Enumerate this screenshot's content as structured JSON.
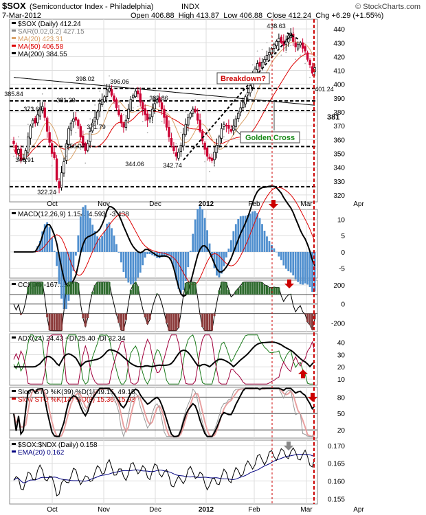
{
  "header": {
    "symbol": "$SOX",
    "name": "(Semiconductor Index - Philadelphia)",
    "exchange": "INDX",
    "credit": "© StockCharts.com",
    "date": "7-Mar-2012",
    "open_label": "Open",
    "open": "406.88",
    "high_label": "High",
    "high": "413.87",
    "low_label": "Low",
    "low": "406.88",
    "close_label": "Close",
    "close": "412.24",
    "chg_label": "Chg",
    "chg": "+6.29 (+1.55%)"
  },
  "colors": {
    "up": "#000000",
    "down": "#cc0033",
    "ma20": "#d9a066",
    "ma50": "#dd0000",
    "ma200": "#000000",
    "sar": "#aaaaaa",
    "annot": "#cc0000",
    "green": "#1a8a1a",
    "macd_hist": "#4f8fcf",
    "cci_fill": "#2e6b2e",
    "cci_neg": "#8b3a3a",
    "plusdi": "#1a7a1a",
    "minusdi": "#a0003c",
    "ema": "#000080",
    "grid": "#dddddd"
  },
  "chart_data": [
    {
      "type": "candlestick",
      "panel": "price",
      "legend": [
        {
          "label": "$SOX (Daily) 412.24",
          "color": "#000000"
        },
        {
          "label": "SAR(0.02,0.2) 427.15",
          "color": "#888888"
        },
        {
          "label": "MA(20) 423.31",
          "color": "#d9a066"
        },
        {
          "label": "MA(50) 406.58",
          "color": "#dd0000"
        },
        {
          "label": "MA(200) 384.55",
          "color": "#000000"
        }
      ],
      "x_labels": [
        "Oct",
        "Nov",
        "Dec",
        "2012",
        "Feb",
        "Mar",
        "Apr"
      ],
      "y_ticks": [
        320,
        330,
        340,
        350,
        360,
        370,
        380,
        390,
        400,
        410,
        420,
        430,
        440
      ],
      "ylim": [
        315,
        447
      ],
      "levels": [
        397,
        388,
        381,
        355,
        326
      ],
      "key_points": [
        {
          "label": "322.24",
          "value": 322.24
        },
        {
          "label": "346.91",
          "value": 346.91
        },
        {
          "label": "373.69",
          "value": 373.69
        },
        {
          "label": "385.84",
          "value": 385.84
        },
        {
          "label": "356.37",
          "value": 356.37
        },
        {
          "label": "381.29",
          "value": 381.29
        },
        {
          "label": "398.02",
          "value": 398.02
        },
        {
          "label": "371.79",
          "value": 371.79
        },
        {
          "label": "396.06",
          "value": 396.06
        },
        {
          "label": "344.06",
          "value": 344.06
        },
        {
          "label": "382.86",
          "value": 382.86
        },
        {
          "label": "342.74",
          "value": 342.74
        },
        {
          "label": "438.63",
          "value": 438.63
        },
        {
          "label": "401.24",
          "value": 401.24
        }
      ],
      "annotations": [
        {
          "text": "Breakdown?",
          "style": "box"
        },
        {
          "text": "Golden Cross",
          "style": "box"
        },
        {
          "text": "381",
          "style": "plain"
        }
      ],
      "closes": [
        357,
        350,
        353,
        345,
        346,
        352,
        362,
        370,
        374,
        372,
        378,
        382,
        384,
        376,
        366,
        358,
        350,
        347,
        331,
        325,
        336,
        344,
        357,
        368,
        372,
        375,
        374,
        370,
        362,
        356,
        352,
        357,
        366,
        372,
        376,
        380,
        386,
        389,
        391,
        396,
        397,
        392,
        388,
        383,
        378,
        372,
        369,
        374,
        382,
        389,
        392,
        395,
        393,
        387,
        382,
        378,
        374,
        376,
        382,
        386,
        389,
        387,
        382,
        376,
        369,
        362,
        356,
        352,
        348,
        351,
        356,
        364,
        371,
        376,
        379,
        382,
        380,
        374,
        366,
        359,
        353,
        348,
        346,
        345,
        351,
        356,
        362,
        368,
        371,
        370,
        368,
        366,
        370,
        375,
        379,
        383,
        387,
        391,
        394,
        399,
        405,
        411,
        415,
        413,
        416,
        418,
        421,
        423,
        426,
        429,
        431,
        433,
        430,
        428,
        432,
        435,
        437,
        431,
        427,
        429,
        430,
        426,
        424,
        418,
        414,
        408,
        412
      ]
    },
    {
      "type": "line",
      "panel": "macd",
      "legend": [
        {
          "label": "MACD(12,26,9) 1.154, 4.593, -3.438",
          "color": "#000000"
        }
      ],
      "y_ticks": [
        10,
        5,
        0,
        -5
      ],
      "ylim": [
        -8,
        13
      ]
    },
    {
      "type": "line",
      "panel": "cci",
      "legend": [
        {
          "label": "CCI(20) -167.13",
          "color": "#000000"
        }
      ],
      "y_ticks": [
        200,
        0,
        -200
      ],
      "ylim": [
        -290,
        250
      ],
      "levels": [
        100,
        0,
        -100
      ]
    },
    {
      "type": "line",
      "panel": "adx",
      "legend": [
        {
          "label": "ADX(14) 24.43 +DI 25.40 -DI 32.34",
          "color": "#000000"
        }
      ],
      "y_ticks": [
        40,
        30,
        20,
        10
      ],
      "ylim": [
        5,
        47
      ]
    },
    {
      "type": "line",
      "panel": "sto",
      "legend": [
        {
          "label": "Slow STO %K(39) %D(1) 49.15, 49.15",
          "color": "#000000"
        },
        {
          "label": "Slow STO %K(14) %D(3) 15.36, 15.93",
          "color": "#cc0000"
        }
      ],
      "y_ticks": [
        80,
        50,
        20
      ],
      "ylim": [
        5,
        98
      ],
      "levels": [
        80,
        50,
        20
      ]
    },
    {
      "type": "line",
      "panel": "ratio",
      "legend": [
        {
          "label": "$SOX:$NDX (Daily) 0.158",
          "color": "#000000"
        },
        {
          "label": "EMA(20) 0.162",
          "color": "#000080"
        }
      ],
      "y_ticks": [
        0.17,
        0.165,
        0.16,
        0.155
      ],
      "y_tick_labels": [
        "0.170",
        "0.165",
        "0.160",
        "0.155"
      ],
      "ylim": [
        0.1535,
        0.1715
      ],
      "x_labels": [
        "Oct",
        "Nov",
        "Dec",
        "2012",
        "Feb",
        "Mar",
        "Apr"
      ]
    }
  ]
}
